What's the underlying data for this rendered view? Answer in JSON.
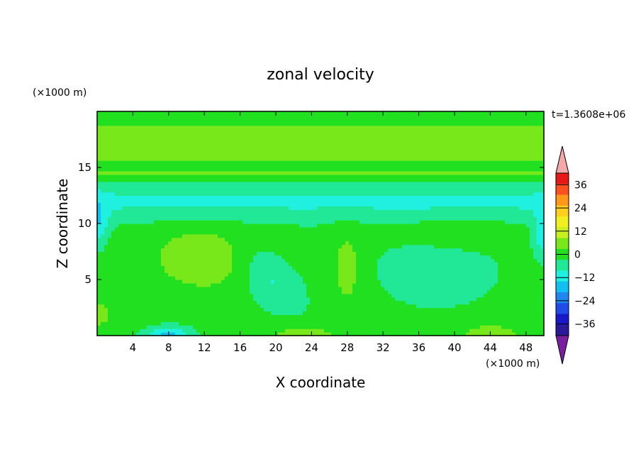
{
  "chart_data": {
    "type": "heatmap",
    "title": "zonal velocity",
    "xlabel": "X coordinate",
    "ylabel": "Z coordinate",
    "x_unit": "(×1000 m)",
    "y_unit": "(×1000 m)",
    "time_label": "t=1.3608e+06",
    "xlim": [
      0,
      50
    ],
    "ylim": [
      0,
      20
    ],
    "x_ticks": [
      4,
      8,
      12,
      16,
      20,
      24,
      28,
      32,
      36,
      40,
      44,
      48
    ],
    "y_ticks": [
      5,
      10,
      15
    ],
    "colorbar": {
      "levels": [
        -42,
        -36,
        -30,
        -24,
        -18,
        -12,
        -6,
        0,
        6,
        12,
        18,
        24,
        30,
        36,
        42
      ],
      "tick_labels": [
        "36",
        "24",
        "12",
        "0",
        "−12",
        "−24",
        "−36"
      ],
      "tick_values": [
        36,
        24,
        12,
        0,
        -12,
        -24,
        -36
      ],
      "colors": [
        "#7a1fa0",
        "#2a1a9a",
        "#1818c8",
        "#1f4be8",
        "#1e88f0",
        "#10c0f0",
        "#20f0e0",
        "#20e896",
        "#20e020",
        "#78e81a",
        "#c8f020",
        "#f0f020",
        "#ffd020",
        "#ff9818",
        "#ff5020",
        "#e81818",
        "#f5a8a8"
      ]
    }
  }
}
